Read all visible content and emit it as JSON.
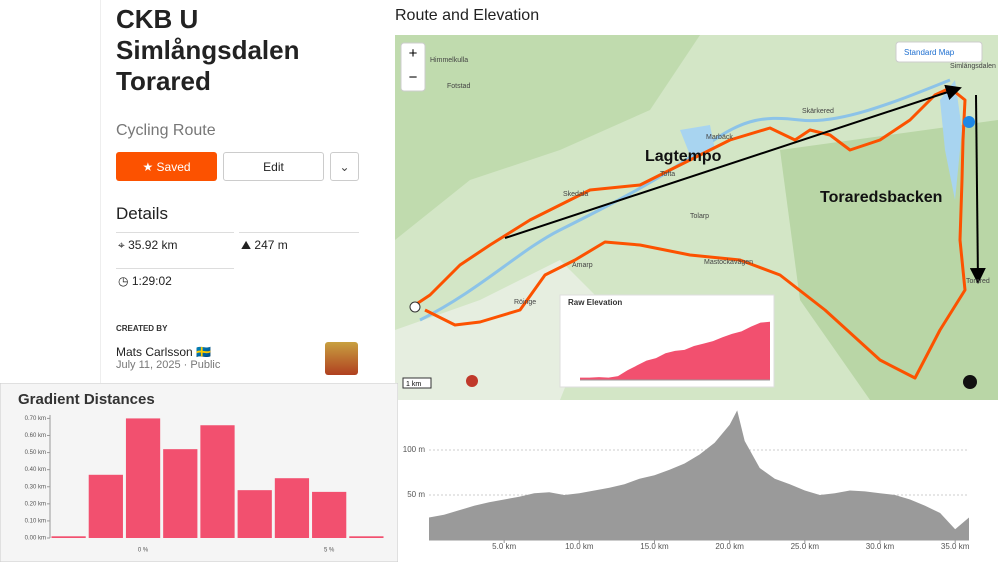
{
  "route": {
    "title": "CKB U Simlångsdalen Torared",
    "subtitle": "Cycling Route",
    "saved": "Saved",
    "edit": "Edit",
    "details": "Details",
    "distance": "35.92 km",
    "elevation": "247 m",
    "time": "1:29:02",
    "created_by": "CREATED BY",
    "author": "Mats Carlsson 🇸🇪",
    "date_line": "July 11, 2025 · Public"
  },
  "map": {
    "heading": "Route and Elevation",
    "style": "Standard Map",
    "zoom_in": "+",
    "zoom_out": "−",
    "scale": "1 km",
    "places": [
      "Himmelkulla",
      "Fotstad",
      "Skedala",
      "Tofta",
      "Marbäck",
      "Skärkered",
      "Tolarp",
      "Amarp",
      "Röinge",
      "Mastockavägen",
      "Simlångsdalen",
      "Torared"
    ],
    "annotations": [
      "Lagtempo",
      "Toraredsbacken"
    ]
  },
  "chart_data": [
    {
      "type": "bar",
      "title": "Gradient Distances",
      "categories": [
        null,
        null,
        "0 %",
        null,
        null,
        null,
        null,
        "5 %",
        null
      ],
      "values": [
        0.01,
        0.37,
        0.7,
        0.52,
        0.66,
        0.28,
        0.35,
        0.27,
        0.01
      ],
      "color": "#f2506f",
      "ylim": [
        0,
        0.72
      ],
      "yticks": [
        {
          "value": 0,
          "label": "0.00 km"
        },
        {
          "value": 0.1,
          "label": "0.10 km"
        },
        {
          "value": 0.2,
          "label": "0.20 km"
        },
        {
          "value": 0.3,
          "label": "0.30 km"
        },
        {
          "value": 0.4,
          "label": "0.40 km"
        },
        {
          "value": 0.5,
          "label": "0.50 km"
        },
        {
          "value": 0.6,
          "label": "0.60 km"
        },
        {
          "value": 0.7,
          "label": "0.70 km"
        }
      ],
      "grid": false
    },
    {
      "type": "area",
      "x": [
        0,
        1,
        2,
        3,
        4,
        5,
        6,
        7,
        8,
        9,
        10,
        11,
        12,
        13,
        14,
        15,
        16,
        17,
        18,
        19,
        20,
        20.5,
        21,
        22,
        23,
        24,
        25,
        26,
        27,
        28,
        29,
        30,
        31,
        32,
        33,
        34,
        35,
        35.92
      ],
      "values": [
        25,
        28,
        33,
        38,
        42,
        45,
        48,
        52,
        53,
        50,
        52,
        55,
        58,
        62,
        68,
        72,
        78,
        85,
        95,
        108,
        128,
        144,
        110,
        80,
        68,
        62,
        55,
        50,
        52,
        55,
        54,
        52,
        50,
        45,
        38,
        30,
        12,
        25
      ],
      "color": "#9a9a9a",
      "xlim": [
        0,
        35.92
      ],
      "xticks": [
        {
          "value": 5,
          "label": "5.0 km"
        },
        {
          "value": 10,
          "label": "10.0 km"
        },
        {
          "value": 15,
          "label": "15.0 km"
        },
        {
          "value": 20,
          "label": "20.0 km"
        },
        {
          "value": 25,
          "label": "25.0 km"
        },
        {
          "value": 30,
          "label": "30.0 km"
        },
        {
          "value": 35,
          "label": "35.0 km"
        }
      ],
      "ylim": [
        0,
        150
      ],
      "yticks": [
        {
          "value": 50,
          "label": "50 m"
        },
        {
          "value": 100,
          "label": "100 m"
        }
      ],
      "grid": true
    },
    {
      "type": "area",
      "title": "Raw Elevation",
      "values": [
        5,
        5,
        6,
        5,
        8,
        20,
        30,
        40,
        45,
        55,
        60,
        62,
        70,
        75,
        80,
        88,
        95,
        100,
        110,
        118,
        120
      ],
      "color": "#f2506f",
      "ylim": [
        0,
        140
      ],
      "grid": true
    }
  ]
}
